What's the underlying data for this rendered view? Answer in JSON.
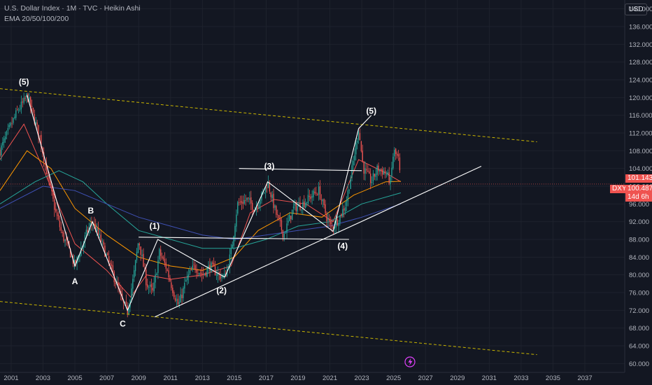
{
  "legend": {
    "line1": "U.S. Dollar Index · 1M · TVC · Heikin Ashi",
    "line2": "EMA 20/50/100/200"
  },
  "currency": "USD",
  "badges": {
    "ema_value": "101.143",
    "symbol": "DXY",
    "last_price": "100.487",
    "countdown": "14d 6h"
  },
  "colors": {
    "up": "#26a69a",
    "down": "#ef5350",
    "background": "#131722"
  },
  "chart_data": {
    "type": "candlestick",
    "y_axis": {
      "ticks": [
        60,
        64,
        68,
        72,
        76,
        80,
        84,
        88,
        92,
        96,
        100,
        104,
        108,
        112,
        116,
        120,
        124,
        128,
        132,
        136,
        140
      ],
      "range": [
        58,
        142
      ]
    },
    "x_axis": {
      "ticks": [
        "2001",
        "2003",
        "2005",
        "2007",
        "2009",
        "2011",
        "2013",
        "2015",
        "2017",
        "2019",
        "2021",
        "2023",
        "2025",
        "2027",
        "2029",
        "2031",
        "2033",
        "2035",
        "2037"
      ],
      "range": [
        2000.3,
        2039.5
      ]
    },
    "price_path": [
      [
        2000.3,
        108
      ],
      [
        2000.9,
        113
      ],
      [
        2001.4,
        117
      ],
      [
        2001.8,
        119
      ],
      [
        2002.0,
        120.5
      ],
      [
        2002.3,
        117
      ],
      [
        2002.8,
        111
      ],
      [
        2003.3,
        102
      ],
      [
        2003.8,
        94
      ],
      [
        2004.2,
        89
      ],
      [
        2004.6,
        86
      ],
      [
        2005.0,
        82
      ],
      [
        2005.4,
        86
      ],
      [
        2005.8,
        90
      ],
      [
        2006.1,
        92
      ],
      [
        2006.6,
        88
      ],
      [
        2007.1,
        83
      ],
      [
        2007.6,
        78
      ],
      [
        2008.0,
        73.5
      ],
      [
        2008.3,
        72
      ],
      [
        2008.7,
        80
      ],
      [
        2009.0,
        88
      ],
      [
        2009.5,
        78
      ],
      [
        2009.9,
        76
      ],
      [
        2010.3,
        85
      ],
      [
        2010.7,
        82
      ],
      [
        2011.2,
        76
      ],
      [
        2011.5,
        73
      ],
      [
        2012.0,
        79
      ],
      [
        2012.5,
        82
      ],
      [
        2013.0,
        80
      ],
      [
        2013.5,
        82
      ],
      [
        2014.0,
        80
      ],
      [
        2014.4,
        79.5
      ],
      [
        2014.8,
        85
      ],
      [
        2015.2,
        96
      ],
      [
        2015.8,
        97
      ],
      [
        2016.3,
        95
      ],
      [
        2016.9,
        99
      ],
      [
        2017.1,
        101
      ],
      [
        2017.6,
        94
      ],
      [
        2018.1,
        89
      ],
      [
        2018.7,
        95
      ],
      [
        2019.3,
        96
      ],
      [
        2019.9,
        98
      ],
      [
        2020.3,
        99
      ],
      [
        2020.8,
        93
      ],
      [
        2021.1,
        90.5
      ],
      [
        2021.6,
        93
      ],
      [
        2022.0,
        96
      ],
      [
        2022.4,
        104
      ],
      [
        2022.8,
        113
      ],
      [
        2023.1,
        104
      ],
      [
        2023.6,
        101
      ],
      [
        2024.0,
        104
      ],
      [
        2024.5,
        103
      ],
      [
        2024.8,
        101
      ],
      [
        2025.0,
        108
      ],
      [
        2025.3,
        106
      ],
      [
        2025.45,
        100.5
      ]
    ],
    "ema": [
      {
        "name": "EMA 20",
        "color": "#ef5350",
        "values": [
          [
            2000.3,
            106
          ],
          [
            2001.8,
            114
          ],
          [
            2003,
            104
          ],
          [
            2005,
            87
          ],
          [
            2007,
            81
          ],
          [
            2008.5,
            75
          ],
          [
            2009.5,
            80
          ],
          [
            2011,
            79
          ],
          [
            2013,
            80
          ],
          [
            2014.8,
            82
          ],
          [
            2016,
            94
          ],
          [
            2017.5,
            97
          ],
          [
            2019.5,
            96
          ],
          [
            2021.2,
            92
          ],
          [
            2022.8,
            106
          ],
          [
            2024.5,
            103
          ],
          [
            2025.45,
            101
          ]
        ]
      },
      {
        "name": "EMA 50",
        "color": "#ff9800",
        "values": [
          [
            2000.3,
            99
          ],
          [
            2002.0,
            108
          ],
          [
            2003.5,
            104
          ],
          [
            2005,
            95
          ],
          [
            2007,
            89
          ],
          [
            2009,
            84
          ],
          [
            2011,
            82
          ],
          [
            2013,
            81
          ],
          [
            2015,
            84
          ],
          [
            2016.5,
            90
          ],
          [
            2018.5,
            94
          ],
          [
            2020.5,
            93
          ],
          [
            2022.5,
            98
          ],
          [
            2024.5,
            101
          ],
          [
            2025.45,
            101.1
          ]
        ]
      },
      {
        "name": "EMA 100",
        "color": "#26a69a",
        "values": [
          [
            2000.3,
            96
          ],
          [
            2002.5,
            101
          ],
          [
            2004,
            103.5
          ],
          [
            2005.5,
            101
          ],
          [
            2007,
            96
          ],
          [
            2009,
            90
          ],
          [
            2011,
            88
          ],
          [
            2013,
            86
          ],
          [
            2015,
            86
          ],
          [
            2017,
            88
          ],
          [
            2019,
            91
          ],
          [
            2021,
            92
          ],
          [
            2023,
            96
          ],
          [
            2025.45,
            98.5
          ]
        ]
      },
      {
        "name": "EMA 200",
        "color": "#3f51b5",
        "values": [
          [
            2000.3,
            95
          ],
          [
            2003,
            100
          ],
          [
            2005,
            99
          ],
          [
            2007,
            96
          ],
          [
            2009,
            93
          ],
          [
            2011,
            91
          ],
          [
            2013,
            89
          ],
          [
            2015,
            88
          ],
          [
            2017,
            89
          ],
          [
            2019,
            90
          ],
          [
            2021,
            91
          ],
          [
            2023,
            93
          ],
          [
            2025.45,
            96
          ]
        ]
      }
    ],
    "lines": [
      {
        "name": "upper-channel",
        "style": "dashed",
        "color": "#c9b500",
        "from": [
          2000.3,
          122
        ],
        "to": [
          2034,
          110
        ]
      },
      {
        "name": "lower-channel",
        "style": "dashed",
        "color": "#c9b500",
        "from": [
          2000.3,
          74
        ],
        "to": [
          2034,
          62
        ]
      },
      {
        "name": "rising-trendline",
        "style": "solid",
        "color": "#ffffff",
        "from": [
          2010.0,
          70.5
        ],
        "to": [
          2030.5,
          104.5
        ]
      },
      {
        "name": "flat-line-wave1",
        "style": "solid",
        "color": "#ffffff",
        "from": [
          2009.0,
          88.5
        ],
        "to": [
          2022.2,
          88.0
        ]
      },
      {
        "name": "flat-line-wave3",
        "style": "solid",
        "color": "#ffffff",
        "from": [
          2015.3,
          104
        ],
        "to": [
          2023.0,
          103.5
        ]
      },
      {
        "name": "wave-path",
        "style": "solid",
        "color": "#ffffff",
        "points": [
          [
            2002.0,
            120.5
          ],
          [
            2005.0,
            82
          ],
          [
            2006.1,
            92
          ],
          [
            2008.3,
            72
          ],
          [
            2010.2,
            88
          ],
          [
            2014.4,
            79.5
          ],
          [
            2017.1,
            101
          ],
          [
            2021.2,
            89.8
          ],
          [
            2022.8,
            113
          ],
          [
            2023.6,
            116
          ]
        ]
      }
    ],
    "annotations": [
      {
        "label": "(5)",
        "x": 2001.8,
        "y": 123.5
      },
      {
        "label": "A",
        "x": 2005.0,
        "y": 78.5
      },
      {
        "label": "B",
        "x": 2006.0,
        "y": 94.5
      },
      {
        "label": "C",
        "x": 2008.0,
        "y": 69.0
      },
      {
        "label": "(1)",
        "x": 2010.0,
        "y": 91.0
      },
      {
        "label": "(2)",
        "x": 2014.2,
        "y": 76.5
      },
      {
        "label": "(3)",
        "x": 2017.2,
        "y": 104.5
      },
      {
        "label": "(4)",
        "x": 2021.8,
        "y": 86.5
      },
      {
        "label": "(5)",
        "x": 2023.6,
        "y": 117.0
      }
    ]
  }
}
